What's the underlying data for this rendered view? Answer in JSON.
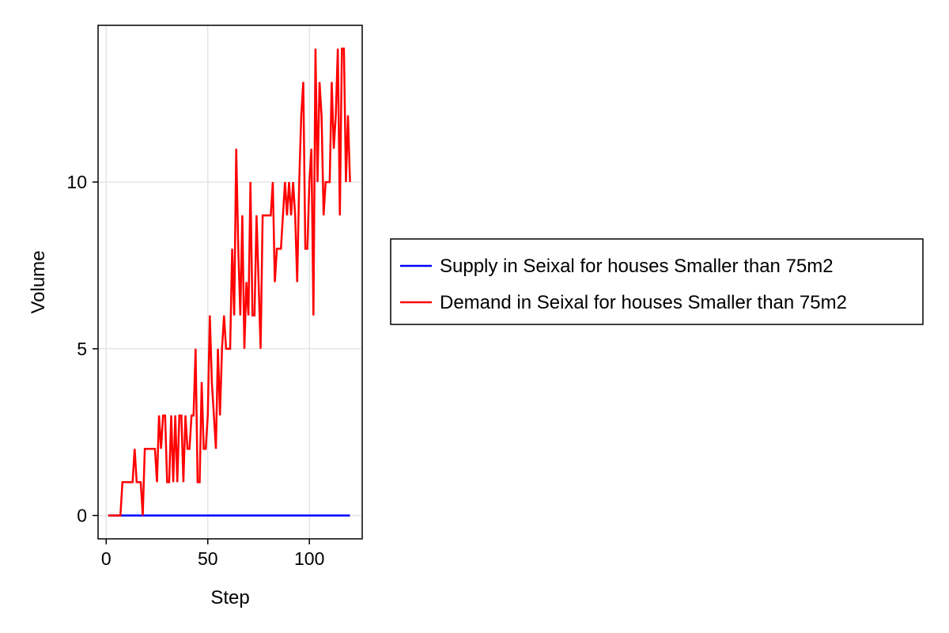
{
  "chart_data": {
    "type": "line",
    "xlabel": "Step",
    "ylabel": "Volume",
    "xlim": [
      -4,
      126
    ],
    "ylim": [
      -0.7,
      14.7
    ],
    "xticks": [
      0,
      50,
      100
    ],
    "yticks": [
      0,
      5,
      10
    ],
    "grid": true,
    "legend_position": "right",
    "series": [
      {
        "name": "Supply in Seixal for houses Smaller than 75m2",
        "color": "#0000ff",
        "x": [
          1,
          120
        ],
        "y": [
          0,
          0
        ]
      },
      {
        "name": "Demand in Seixal for houses Smaller than 75m2",
        "color": "#ff0000",
        "x": [
          1,
          2,
          3,
          4,
          5,
          6,
          7,
          8,
          9,
          10,
          11,
          12,
          13,
          14,
          15,
          16,
          17,
          18,
          19,
          20,
          21,
          22,
          23,
          24,
          25,
          26,
          27,
          28,
          29,
          30,
          31,
          32,
          33,
          34,
          35,
          36,
          37,
          38,
          39,
          40,
          41,
          42,
          43,
          44,
          45,
          46,
          47,
          48,
          49,
          50,
          51,
          52,
          53,
          54,
          55,
          56,
          57,
          58,
          59,
          60,
          61,
          62,
          63,
          64,
          65,
          66,
          67,
          68,
          69,
          70,
          71,
          72,
          73,
          74,
          75,
          76,
          77,
          78,
          79,
          80,
          81,
          82,
          83,
          84,
          85,
          86,
          87,
          88,
          89,
          90,
          91,
          92,
          93,
          94,
          95,
          96,
          97,
          98,
          99,
          100,
          101,
          102,
          103,
          104,
          105,
          106,
          107,
          108,
          109,
          110,
          111,
          112,
          113,
          114,
          115,
          116,
          117,
          118,
          119,
          120
        ],
        "y": [
          0,
          0,
          0,
          0,
          0,
          0,
          0,
          1,
          1,
          1,
          1,
          1,
          1,
          2,
          1,
          1,
          1,
          0,
          2,
          2,
          2,
          2,
          2,
          2,
          1,
          3,
          2,
          3,
          3,
          1,
          1,
          3,
          1,
          3,
          1,
          3,
          3,
          1,
          3,
          2,
          2,
          3,
          3,
          5,
          1,
          1,
          4,
          2,
          2,
          3,
          6,
          4,
          3,
          2,
          5,
          3,
          5,
          6,
          5,
          5,
          5,
          8,
          6,
          11,
          8,
          6,
          9,
          5,
          7,
          6,
          10,
          6,
          6,
          9,
          7,
          5,
          9,
          9,
          9,
          9,
          9,
          10,
          7,
          8,
          8,
          8,
          9,
          10,
          9,
          10,
          9,
          10,
          9,
          7,
          10,
          12,
          13,
          8,
          8,
          10,
          11,
          6,
          14,
          10,
          13,
          12,
          9,
          10,
          10,
          10,
          13,
          11,
          12,
          14,
          9,
          14,
          14,
          10,
          12,
          10
        ]
      }
    ]
  }
}
